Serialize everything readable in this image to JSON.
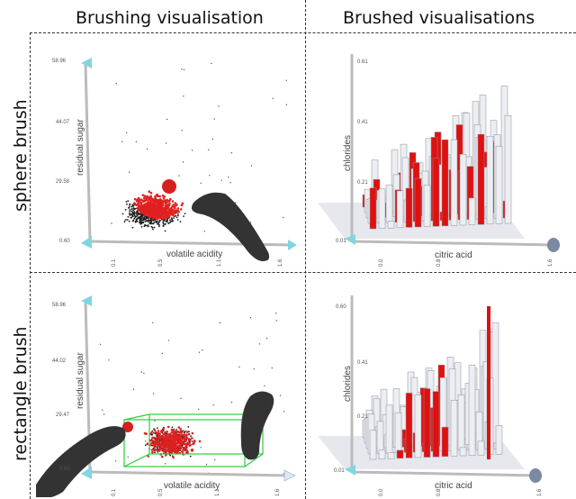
{
  "columns": {
    "left": "Brushing visualisation",
    "right": "Brushed visualisations"
  },
  "rows": {
    "top": "sphere brush",
    "bottom": "rectangle brush"
  },
  "panels": {
    "sphere_scatter": {
      "x_label": "volatile acidity",
      "y_label": "residual sugar",
      "y_ticks": [
        "58.96",
        "44.07",
        "29.58",
        "0.60"
      ],
      "x_ticks": [
        "0.1",
        "0.5",
        "1.1",
        "1.6"
      ],
      "colors": {
        "selected": "#e02020",
        "unselected": "#222222",
        "handle": "#7fd6e0",
        "brush": "#d42020"
      }
    },
    "sphere_bars": {
      "x_label": "citric acid",
      "y_label": "chlorides",
      "y_ticks": [
        "0.61",
        "0.41",
        "0.21",
        "0.01"
      ],
      "x_ticks": [
        "0.0",
        "0.8",
        "1.6"
      ],
      "colors": {
        "selected": "#e01010",
        "bar": "#e8e8ec"
      }
    },
    "rect_scatter": {
      "x_label": "volatile acidity",
      "y_label": "residual sugar",
      "y_ticks": [
        "58.96",
        "44.02",
        "29.47",
        "0.60"
      ],
      "x_ticks": [
        "0.1",
        "0.5",
        "1.1",
        "1.6"
      ],
      "colors": {
        "selected": "#e02020",
        "box": "#2ecc40"
      }
    },
    "rect_bars": {
      "x_label": "citric acid",
      "y_label": "chlorides",
      "y_ticks": [
        "0.60",
        "0.41",
        "0.21",
        "0.01"
      ],
      "x_ticks": [
        "0.0",
        "0.8",
        "1.6"
      ],
      "colors": {
        "selected": "#e01010",
        "bar": "#e8e8ec"
      }
    }
  }
}
